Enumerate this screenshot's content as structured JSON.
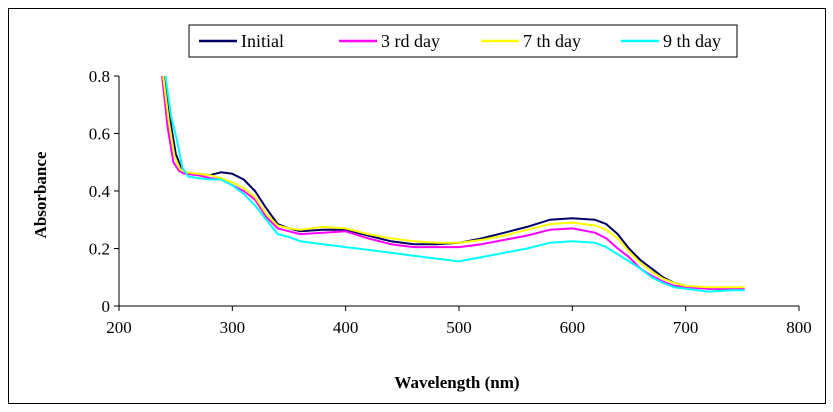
{
  "chart_data": {
    "type": "line",
    "title": "",
    "xlabel": "Wavelength (nm)",
    "ylabel": "Absorbance",
    "xlim": [
      200,
      800
    ],
    "ylim": [
      0,
      0.8
    ],
    "x_ticks": [
      200,
      300,
      400,
      500,
      600,
      700,
      800
    ],
    "y_ticks": [
      0,
      0.2,
      0.4,
      0.6,
      0.8
    ],
    "x_tick_labels": [
      "200",
      "300",
      "400",
      "500",
      "600",
      "700",
      "800"
    ],
    "y_tick_labels": [
      "0",
      "0.2",
      "0.4",
      "0.6",
      "0.8"
    ],
    "grid": false,
    "legend_position": "top-center",
    "series": [
      {
        "name": "Initial",
        "color": "#000066",
        "x": [
          240,
          245,
          250,
          255,
          260,
          270,
          280,
          290,
          300,
          310,
          320,
          330,
          340,
          350,
          360,
          380,
          400,
          420,
          440,
          460,
          480,
          500,
          520,
          540,
          560,
          580,
          600,
          620,
          630,
          640,
          650,
          660,
          670,
          680,
          690,
          700,
          720,
          740,
          752
        ],
        "y": [
          0.8,
          0.65,
          0.53,
          0.48,
          0.46,
          0.46,
          0.455,
          0.465,
          0.46,
          0.44,
          0.4,
          0.34,
          0.285,
          0.27,
          0.26,
          0.265,
          0.265,
          0.245,
          0.225,
          0.215,
          0.215,
          0.22,
          0.235,
          0.255,
          0.275,
          0.3,
          0.305,
          0.3,
          0.285,
          0.25,
          0.2,
          0.16,
          0.13,
          0.1,
          0.08,
          0.07,
          0.06,
          0.06,
          0.06
        ]
      },
      {
        "name": "3 rd day",
        "color": "#ff00ff",
        "x": [
          238,
          243,
          248,
          253,
          258,
          270,
          280,
          290,
          300,
          310,
          320,
          330,
          340,
          350,
          360,
          380,
          400,
          420,
          440,
          460,
          480,
          500,
          520,
          540,
          560,
          580,
          600,
          620,
          630,
          640,
          650,
          660,
          670,
          680,
          690,
          700,
          720,
          740,
          752
        ],
        "y": [
          0.8,
          0.62,
          0.5,
          0.47,
          0.46,
          0.455,
          0.445,
          0.44,
          0.42,
          0.4,
          0.37,
          0.31,
          0.27,
          0.26,
          0.25,
          0.255,
          0.26,
          0.235,
          0.215,
          0.205,
          0.205,
          0.205,
          0.215,
          0.23,
          0.245,
          0.265,
          0.27,
          0.255,
          0.235,
          0.2,
          0.17,
          0.13,
          0.105,
          0.085,
          0.07,
          0.065,
          0.06,
          0.06,
          0.06
        ]
      },
      {
        "name": "7 th day",
        "color": "#ffff00",
        "x": [
          239,
          244,
          249,
          254,
          259,
          270,
          280,
          290,
          300,
          310,
          320,
          330,
          340,
          350,
          360,
          380,
          400,
          420,
          440,
          460,
          480,
          500,
          520,
          540,
          560,
          580,
          600,
          620,
          630,
          640,
          650,
          660,
          670,
          680,
          690,
          700,
          720,
          740,
          752
        ],
        "y": [
          0.8,
          0.64,
          0.52,
          0.475,
          0.465,
          0.46,
          0.455,
          0.445,
          0.43,
          0.41,
          0.38,
          0.32,
          0.28,
          0.27,
          0.265,
          0.275,
          0.27,
          0.25,
          0.235,
          0.225,
          0.22,
          0.22,
          0.23,
          0.245,
          0.265,
          0.285,
          0.29,
          0.28,
          0.265,
          0.235,
          0.19,
          0.15,
          0.12,
          0.095,
          0.08,
          0.07,
          0.065,
          0.065,
          0.065
        ]
      },
      {
        "name": "9 th day",
        "color": "#00ffff",
        "x": [
          241,
          246,
          251,
          256,
          261,
          270,
          280,
          290,
          300,
          310,
          320,
          330,
          340,
          350,
          360,
          380,
          400,
          420,
          440,
          460,
          480,
          500,
          520,
          540,
          560,
          580,
          600,
          620,
          630,
          640,
          650,
          660,
          670,
          680,
          690,
          700,
          720,
          740,
          752
        ],
        "y": [
          0.8,
          0.66,
          0.58,
          0.48,
          0.45,
          0.445,
          0.44,
          0.44,
          0.42,
          0.39,
          0.35,
          0.3,
          0.25,
          0.24,
          0.225,
          0.215,
          0.205,
          0.195,
          0.185,
          0.175,
          0.165,
          0.155,
          0.17,
          0.185,
          0.2,
          0.22,
          0.225,
          0.22,
          0.205,
          0.18,
          0.155,
          0.13,
          0.1,
          0.08,
          0.065,
          0.06,
          0.05,
          0.055,
          0.055
        ]
      }
    ]
  }
}
